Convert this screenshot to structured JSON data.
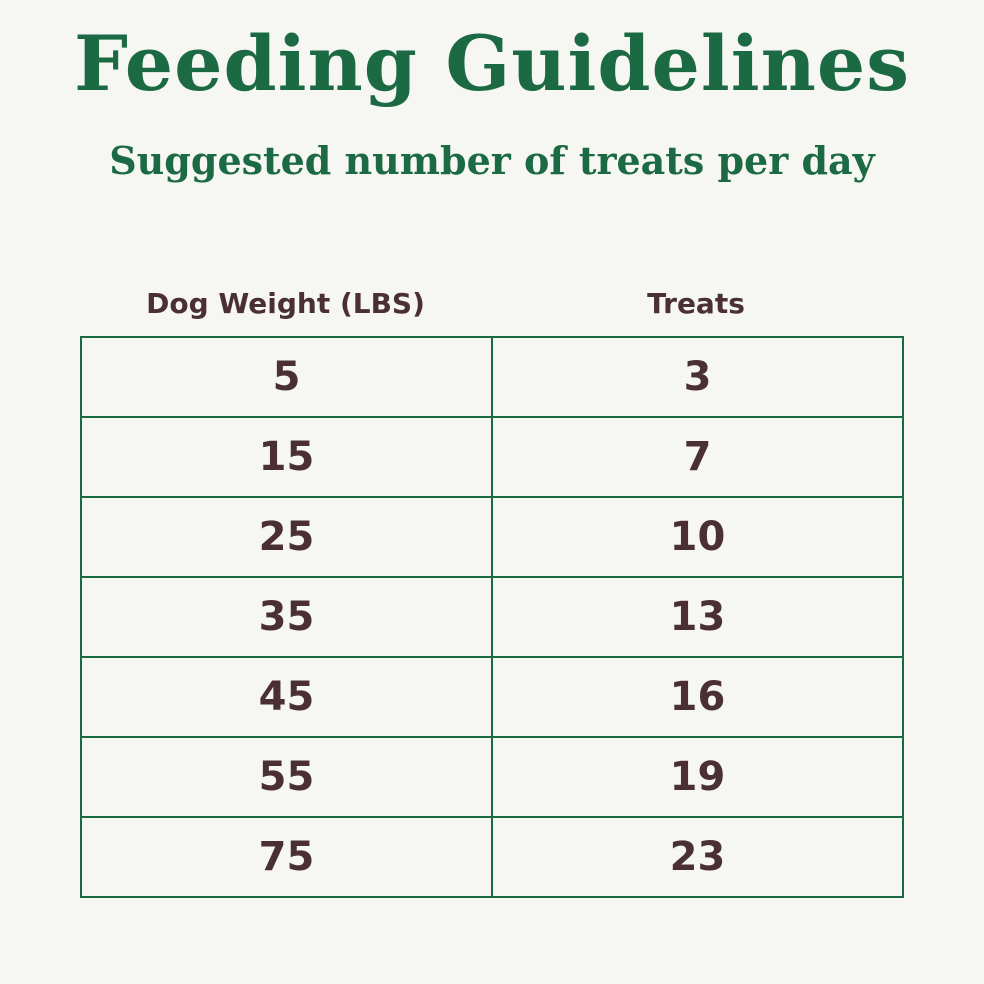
{
  "title": "Feeding Guidelines",
  "subtitle": "Suggested number of treats per day",
  "table": {
    "headers": {
      "weight": "Dog Weight (LBS)",
      "treats": "Treats"
    },
    "rows": [
      {
        "weight": "5",
        "treats": "3"
      },
      {
        "weight": "15",
        "treats": "7"
      },
      {
        "weight": "25",
        "treats": "10"
      },
      {
        "weight": "35",
        "treats": "13"
      },
      {
        "weight": "45",
        "treats": "16"
      },
      {
        "weight": "55",
        "treats": "19"
      },
      {
        "weight": "75",
        "treats": "23"
      }
    ]
  },
  "colors": {
    "background": "#f6f6f2",
    "brand_green": "#1c6a44",
    "text_brown": "#4a3034"
  }
}
